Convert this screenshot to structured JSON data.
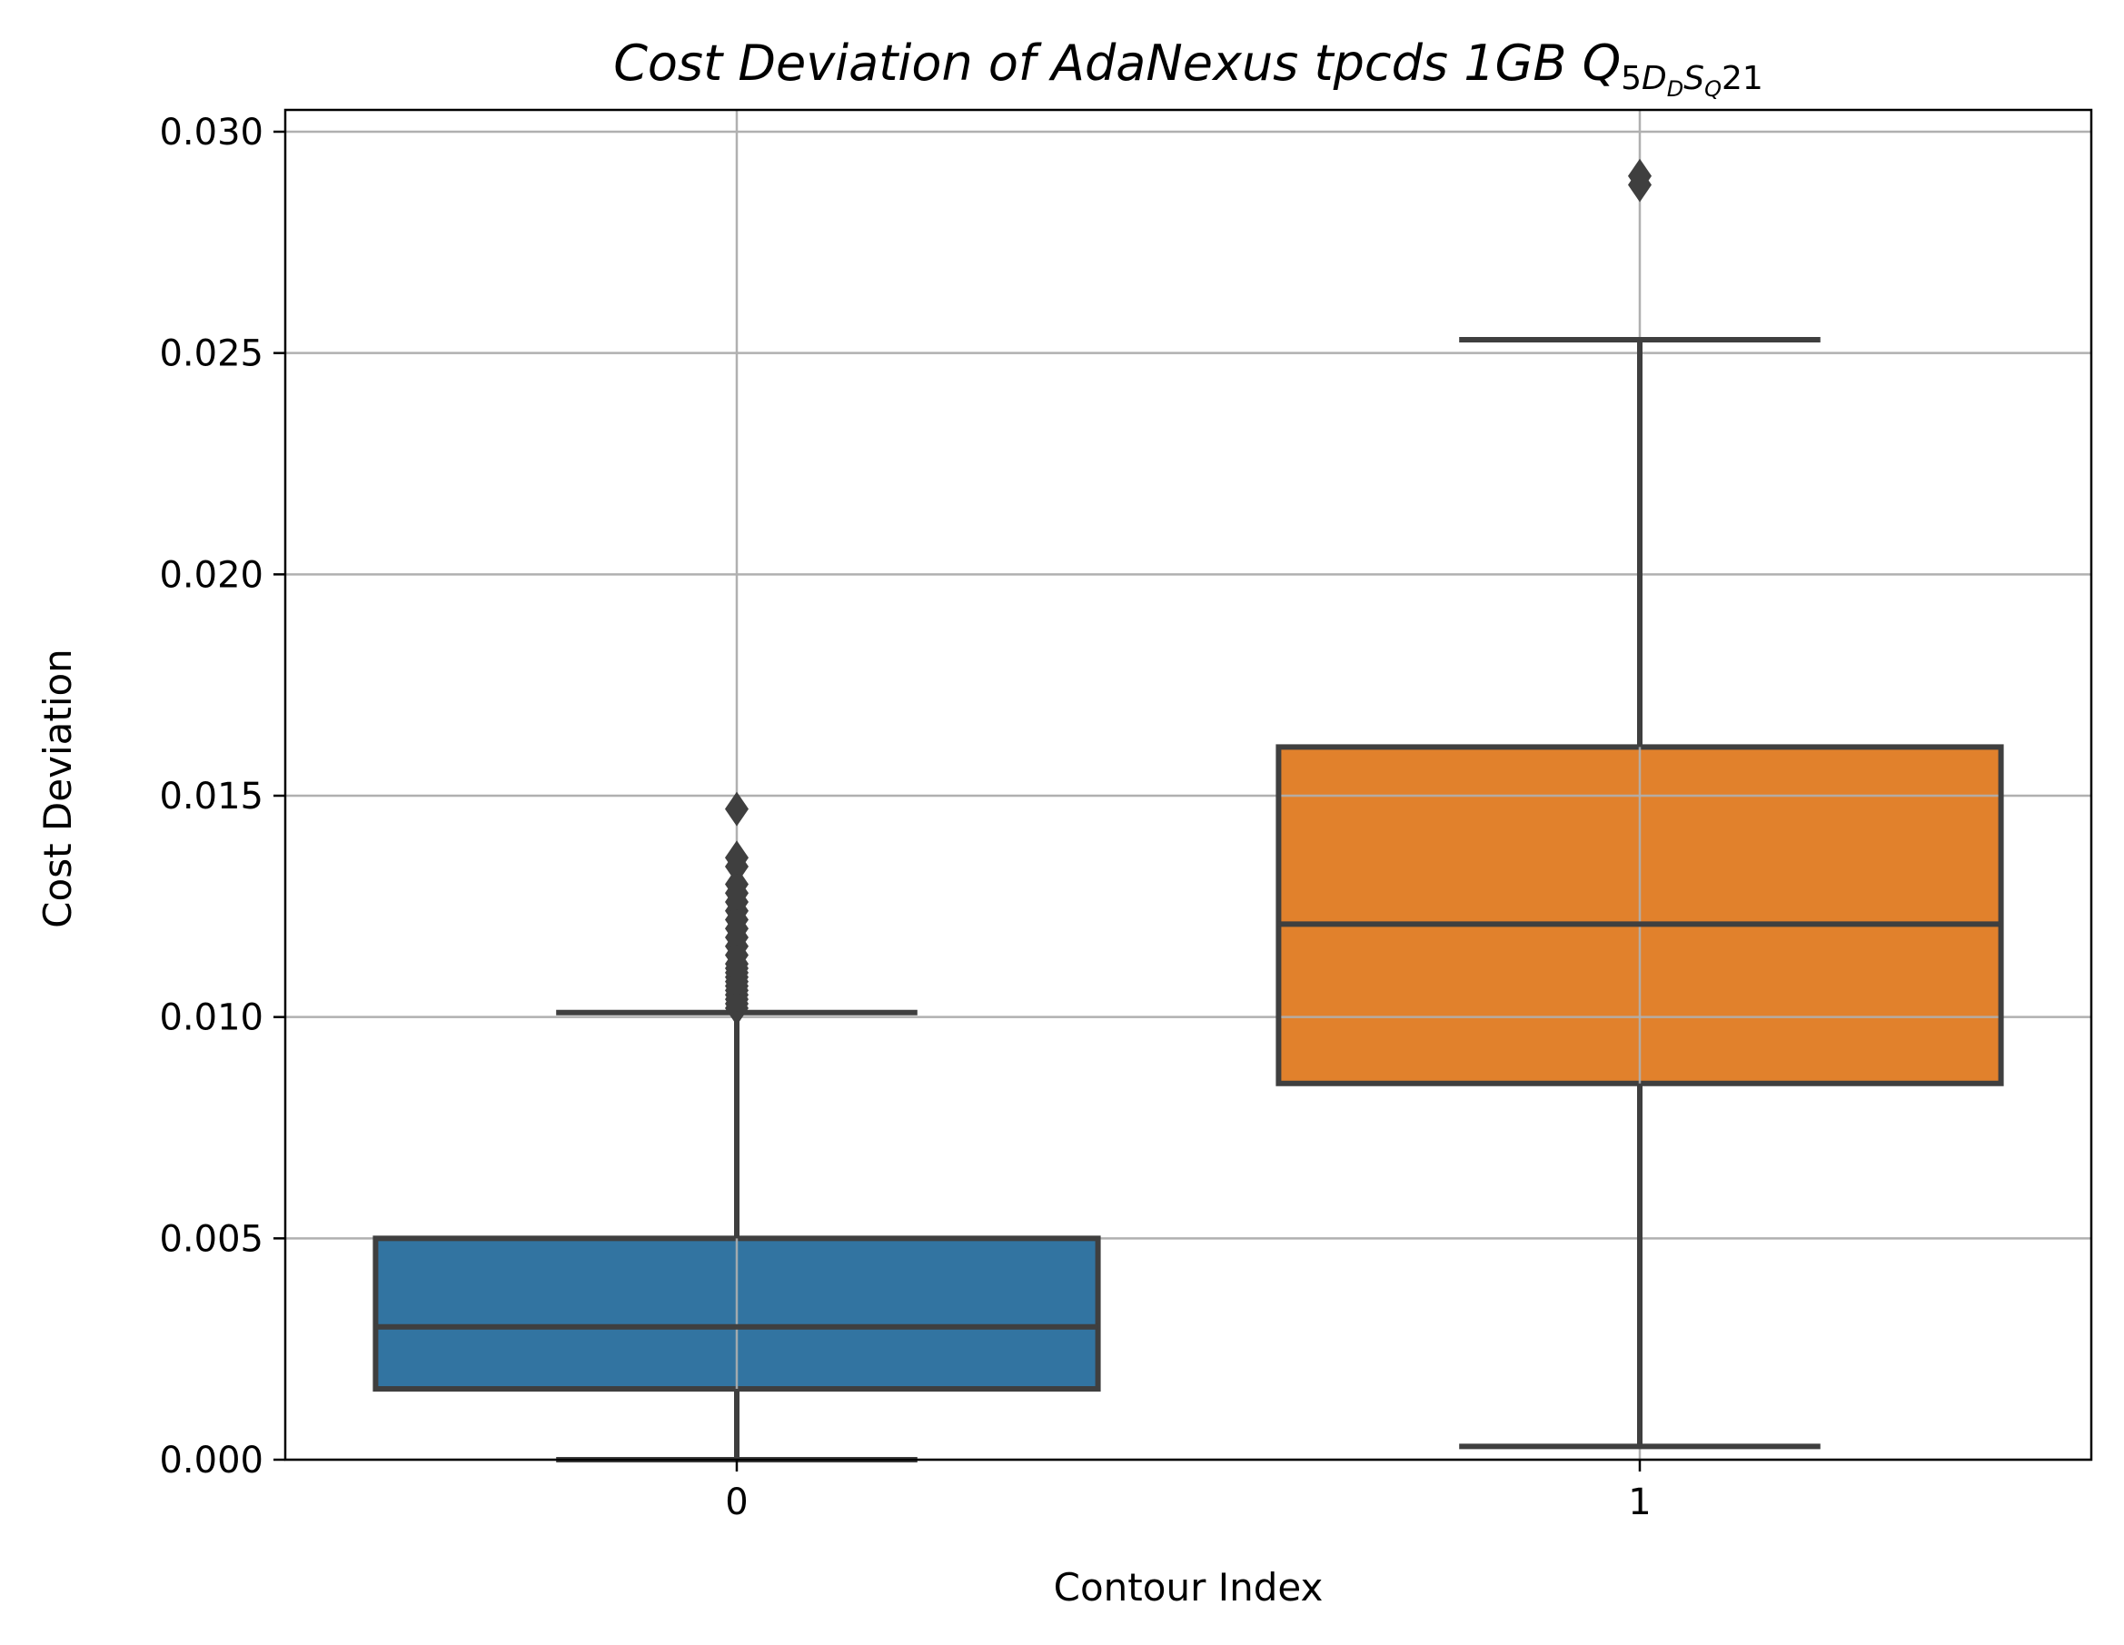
{
  "chart_data": {
    "type": "box",
    "title": {
      "main": "Cost Deviation of AdaNexus tpcds  1GB  ",
      "q_letter": "Q",
      "sub_prefix": "5",
      "sub_d": "D",
      "sub_d_sub": "D",
      "sub_s": "S",
      "sub_s_sub": "Q",
      "sub_suffix": "21"
    },
    "xlabel": "Contour Index",
    "ylabel": "Cost Deviation",
    "categories": [
      "0",
      "1"
    ],
    "ylim": [
      0,
      0.0305
    ],
    "yticks": [
      0.0,
      0.005,
      0.01,
      0.015,
      0.02,
      0.025,
      0.03
    ],
    "ytick_labels": [
      "0.000",
      "0.005",
      "0.010",
      "0.015",
      "0.020",
      "0.025",
      "0.030"
    ],
    "grid": true,
    "boxes": [
      {
        "category": "0",
        "color": "#3274a1",
        "whisker_low": 0.0,
        "q1": 0.0016,
        "median": 0.003,
        "q3": 0.005,
        "whisker_high": 0.0101,
        "outliers": [
          0.0102,
          0.0103,
          0.0104,
          0.0105,
          0.0106,
          0.0107,
          0.0108,
          0.0109,
          0.011,
          0.0111,
          0.0112,
          0.0114,
          0.0116,
          0.0118,
          0.012,
          0.0122,
          0.0124,
          0.0126,
          0.0128,
          0.013,
          0.0134,
          0.0136,
          0.0147
        ]
      },
      {
        "category": "1",
        "color": "#e1812c",
        "whisker_low": 0.0003,
        "q1": 0.0085,
        "median": 0.0121,
        "q3": 0.0161,
        "whisker_high": 0.0253,
        "outliers": [
          0.0288,
          0.029
        ]
      }
    ],
    "colors": {
      "line": "#3f3f3f",
      "grid": "#b0b0b0",
      "axes": "#000000"
    }
  }
}
